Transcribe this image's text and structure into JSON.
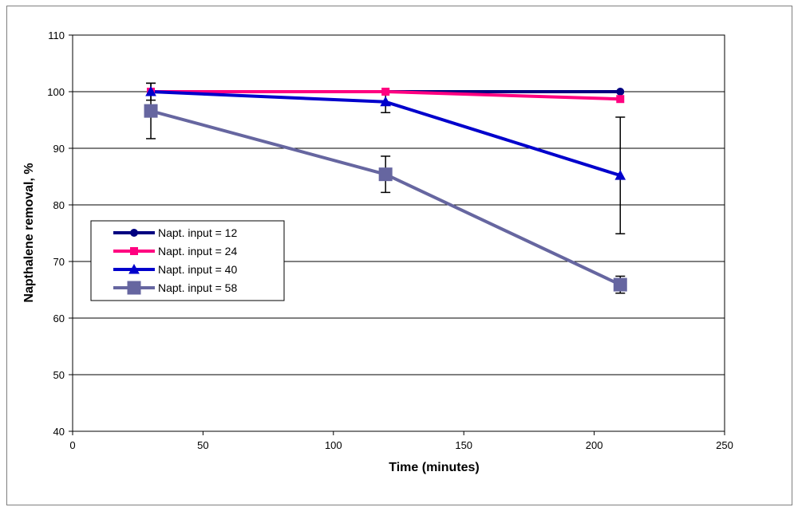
{
  "chart_data": {
    "type": "line",
    "title": "",
    "xlabel": "Time  (minutes)",
    "ylabel": "Napthalene removal, %",
    "xlim": [
      0,
      250
    ],
    "ylim": [
      40,
      110
    ],
    "x_ticks": [
      0,
      50,
      100,
      150,
      200,
      250
    ],
    "y_ticks": [
      40,
      50,
      60,
      70,
      80,
      90,
      100,
      110
    ],
    "x": [
      30,
      120,
      210
    ],
    "grid": "horizontal",
    "legend_position": "center-left",
    "series": [
      {
        "name": "Napt. input = 12",
        "values": [
          100,
          100,
          100
        ],
        "error": [
          null,
          null,
          null
        ],
        "color": "#000080",
        "marker": "circle"
      },
      {
        "name": "Napt. input = 24",
        "values": [
          100,
          100,
          98.7
        ],
        "error": [
          null,
          null,
          null
        ],
        "color": "#ff0080",
        "marker": "square"
      },
      {
        "name": "Napt. input = 40",
        "values": [
          100,
          98.2,
          85.2
        ],
        "error": [
          1.5,
          1.9,
          10.3
        ],
        "color": "#0000cc",
        "marker": "triangle"
      },
      {
        "name": "Napt. input = 58",
        "values": [
          96.6,
          85.4,
          65.9
        ],
        "error": [
          4.9,
          3.2,
          1.5
        ],
        "color": "#6666a0",
        "marker": "square-large"
      }
    ]
  }
}
